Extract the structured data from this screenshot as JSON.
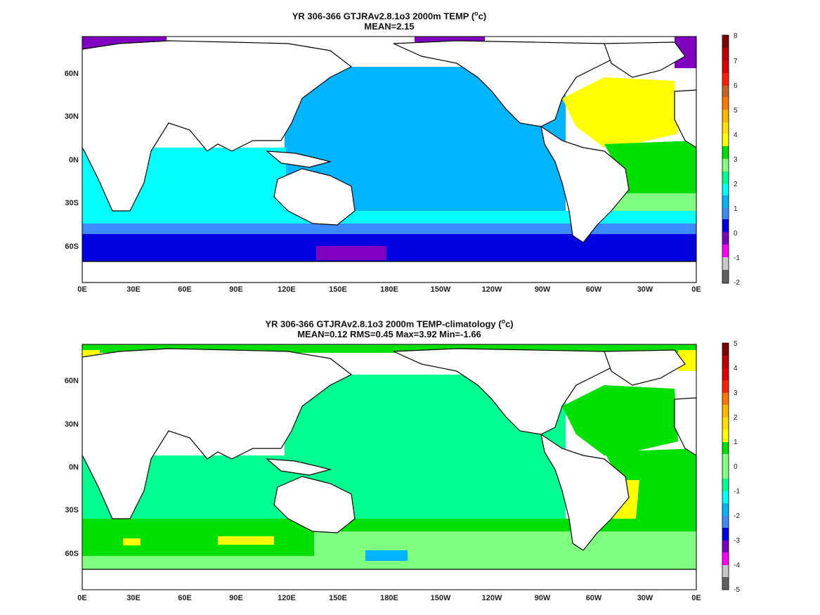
{
  "panels": [
    {
      "title_prefix": "YR 306-366 GTJRAv2.8.1o3 2000m TEMP (",
      "title_unit_sup": "o",
      "title_suffix": "c)",
      "subtitle": "MEAN=2.15",
      "colorbar_ticks": [
        "8",
        "7",
        "6",
        "5",
        "4",
        "3",
        "2",
        "1",
        "0",
        "-1",
        "-2"
      ]
    },
    {
      "title_prefix": "YR 306-366 GTJRAv2.8.1o3 2000m TEMP-climatology (",
      "title_unit_sup": "o",
      "title_suffix": "c)",
      "subtitle": "MEAN=0.12   RMS=0.45   Max=3.92   Min=-1.66",
      "colorbar_ticks": [
        "5",
        "4",
        "3",
        "2",
        "1",
        "0",
        "-1",
        "-2",
        "-3",
        "-4",
        "-5"
      ]
    }
  ],
  "x_ticks": [
    "0E",
    "30E",
    "60E",
    "90E",
    "120E",
    "150E",
    "180E",
    "150W",
    "120W",
    "90W",
    "60W",
    "30W",
    "0E"
  ],
  "y_ticks": [
    "60N",
    "30N",
    "0N",
    "30S",
    "60S"
  ],
  "colorbar_colors": [
    "#606060",
    "#c8c8c8",
    "#ff00ff",
    "#8000c0",
    "#0000e0",
    "#3c8cff",
    "#00b4ff",
    "#00ffff",
    "#00ff90",
    "#80ff80",
    "#00e000",
    "#ffff00",
    "#ffb400",
    "#ff7800",
    "#ff2000",
    "#c00000",
    "#800000"
  ],
  "ocean_colors": {
    "panel1": {
      "pacific": "#00b4ff",
      "indian": "#00ffff",
      "atlantic_n": "#ffff00",
      "atlantic_s": "#00e000",
      "southern": "#3c8cff",
      "antarctic": "#0000e0",
      "arctic": "#8000c0"
    },
    "panel2": {
      "pacific": "#00ff90",
      "indian": "#00ff90",
      "atlantic_n": "#00e000",
      "atlantic_s": "#00e000",
      "southern": "#80ff80",
      "antarctic": "#80ff80",
      "arctic": "#00e000"
    }
  }
}
